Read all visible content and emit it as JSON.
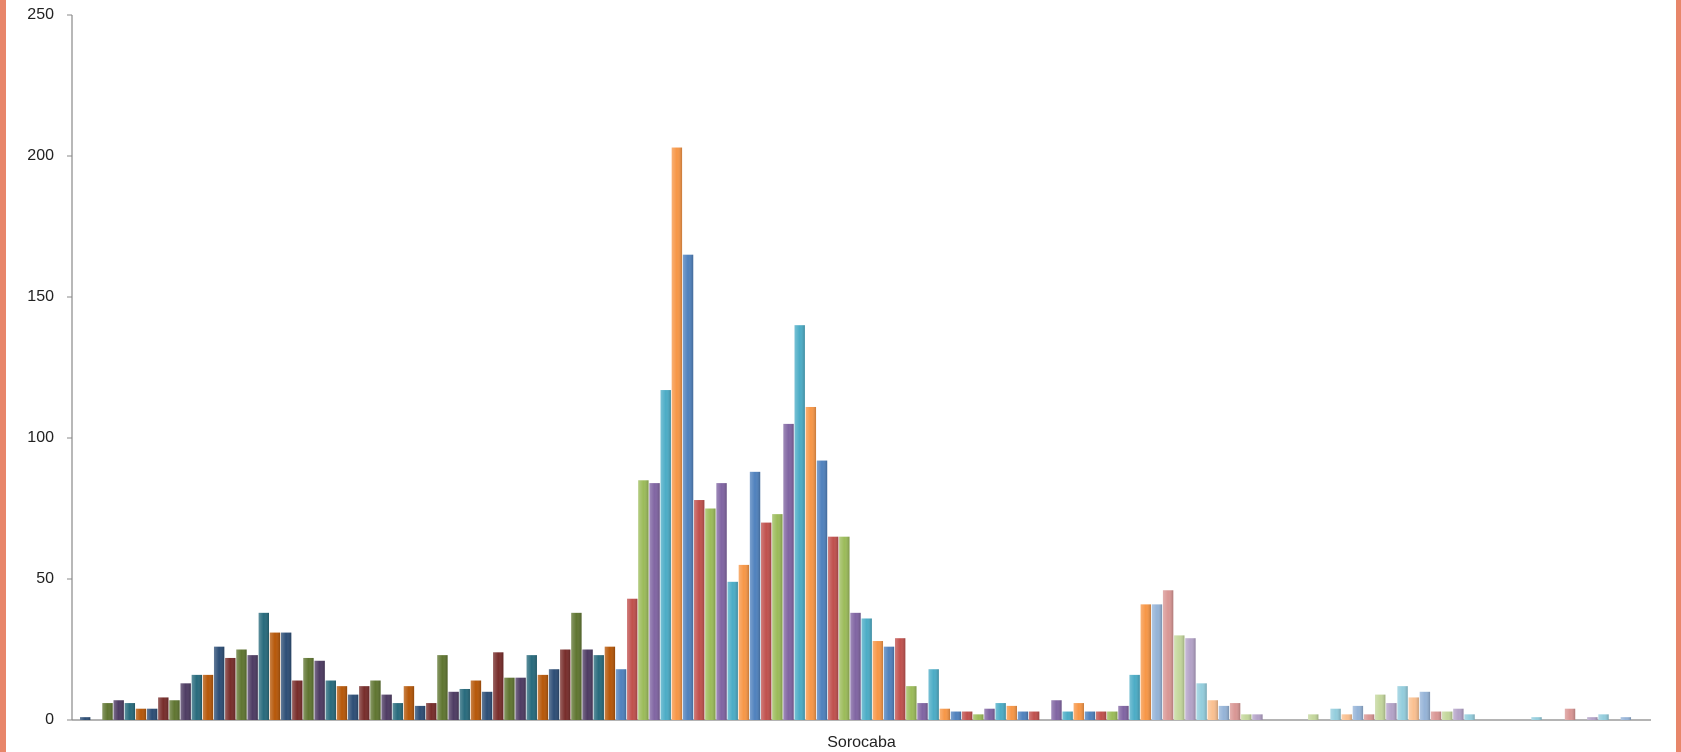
{
  "chart_data": {
    "type": "bar",
    "categories": [
      "Sorocaba"
    ],
    "ylim": [
      0,
      250
    ],
    "yticks": [
      0,
      50,
      100,
      150,
      200,
      250
    ],
    "grid": false,
    "series": [
      {
        "color": "#2C4D75",
        "values": [
          1
        ]
      },
      {
        "color": "#772C2A",
        "values": [
          0
        ]
      },
      {
        "color": "#5F7530",
        "values": [
          6
        ]
      },
      {
        "color": "#4D3B62",
        "values": [
          7
        ]
      },
      {
        "color": "#276A7C",
        "values": [
          6
        ]
      },
      {
        "color": "#B65708",
        "values": [
          4
        ]
      },
      {
        "color": "#2C4D75",
        "values": [
          4
        ]
      },
      {
        "color": "#772C2A",
        "values": [
          8
        ]
      },
      {
        "color": "#5F7530",
        "values": [
          7
        ]
      },
      {
        "color": "#4D3B62",
        "values": [
          13
        ]
      },
      {
        "color": "#276A7C",
        "values": [
          16
        ]
      },
      {
        "color": "#B65708",
        "values": [
          16
        ]
      },
      {
        "color": "#2C4D75",
        "values": [
          26
        ]
      },
      {
        "color": "#772C2A",
        "values": [
          22
        ]
      },
      {
        "color": "#5F7530",
        "values": [
          25
        ]
      },
      {
        "color": "#4D3B62",
        "values": [
          23
        ]
      },
      {
        "color": "#276A7C",
        "values": [
          38
        ]
      },
      {
        "color": "#B65708",
        "values": [
          31
        ]
      },
      {
        "color": "#2C4D75",
        "values": [
          31
        ]
      },
      {
        "color": "#772C2A",
        "values": [
          14
        ]
      },
      {
        "color": "#5F7530",
        "values": [
          22
        ]
      },
      {
        "color": "#4D3B62",
        "values": [
          21
        ]
      },
      {
        "color": "#276A7C",
        "values": [
          14
        ]
      },
      {
        "color": "#B65708",
        "values": [
          12
        ]
      },
      {
        "color": "#2C4D75",
        "values": [
          9
        ]
      },
      {
        "color": "#772C2A",
        "values": [
          12
        ]
      },
      {
        "color": "#5F7530",
        "values": [
          14
        ]
      },
      {
        "color": "#4D3B62",
        "values": [
          9
        ]
      },
      {
        "color": "#276A7C",
        "values": [
          6
        ]
      },
      {
        "color": "#B65708",
        "values": [
          12
        ]
      },
      {
        "color": "#2C4D75",
        "values": [
          5
        ]
      },
      {
        "color": "#772C2A",
        "values": [
          6
        ]
      },
      {
        "color": "#5F7530",
        "values": [
          23
        ]
      },
      {
        "color": "#4D3B62",
        "values": [
          10
        ]
      },
      {
        "color": "#276A7C",
        "values": [
          11
        ]
      },
      {
        "color": "#B65708",
        "values": [
          14
        ]
      },
      {
        "color": "#2C4D75",
        "values": [
          10
        ]
      },
      {
        "color": "#772C2A",
        "values": [
          24
        ]
      },
      {
        "color": "#5F7530",
        "values": [
          15
        ]
      },
      {
        "color": "#4D3B62",
        "values": [
          15
        ]
      },
      {
        "color": "#276A7C",
        "values": [
          23
        ]
      },
      {
        "color": "#B65708",
        "values": [
          16
        ]
      },
      {
        "color": "#2C4D75",
        "values": [
          18
        ]
      },
      {
        "color": "#772C2A",
        "values": [
          25
        ]
      },
      {
        "color": "#5F7530",
        "values": [
          38
        ]
      },
      {
        "color": "#4D3B62",
        "values": [
          25
        ]
      },
      {
        "color": "#276A7C",
        "values": [
          23
        ]
      },
      {
        "color": "#B65708",
        "values": [
          26
        ]
      },
      {
        "color": "#4F81BD",
        "values": [
          18
        ]
      },
      {
        "color": "#C0504D",
        "values": [
          43
        ]
      },
      {
        "color": "#9BBB59",
        "values": [
          85
        ]
      },
      {
        "color": "#8064A2",
        "values": [
          84
        ]
      },
      {
        "color": "#4BACC6",
        "values": [
          117
        ]
      },
      {
        "color": "#F79646",
        "values": [
          203
        ]
      },
      {
        "color": "#4F81BD",
        "values": [
          165
        ]
      },
      {
        "color": "#C0504D",
        "values": [
          78
        ]
      },
      {
        "color": "#9BBB59",
        "values": [
          75
        ]
      },
      {
        "color": "#8064A2",
        "values": [
          84
        ]
      },
      {
        "color": "#4BACC6",
        "values": [
          49
        ]
      },
      {
        "color": "#F79646",
        "values": [
          55
        ]
      },
      {
        "color": "#4F81BD",
        "values": [
          88
        ]
      },
      {
        "color": "#C0504D",
        "values": [
          70
        ]
      },
      {
        "color": "#9BBB59",
        "values": [
          73
        ]
      },
      {
        "color": "#8064A2",
        "values": [
          105
        ]
      },
      {
        "color": "#4BACC6",
        "values": [
          140
        ]
      },
      {
        "color": "#F79646",
        "values": [
          111
        ]
      },
      {
        "color": "#4F81BD",
        "values": [
          92
        ]
      },
      {
        "color": "#C0504D",
        "values": [
          65
        ]
      },
      {
        "color": "#9BBB59",
        "values": [
          65
        ]
      },
      {
        "color": "#8064A2",
        "values": [
          38
        ]
      },
      {
        "color": "#4BACC6",
        "values": [
          36
        ]
      },
      {
        "color": "#F79646",
        "values": [
          28
        ]
      },
      {
        "color": "#4F81BD",
        "values": [
          26
        ]
      },
      {
        "color": "#C0504D",
        "values": [
          29
        ]
      },
      {
        "color": "#9BBB59",
        "values": [
          12
        ]
      },
      {
        "color": "#8064A2",
        "values": [
          6
        ]
      },
      {
        "color": "#4BACC6",
        "values": [
          18
        ]
      },
      {
        "color": "#F79646",
        "values": [
          4
        ]
      },
      {
        "color": "#4F81BD",
        "values": [
          3
        ]
      },
      {
        "color": "#C0504D",
        "values": [
          3
        ]
      },
      {
        "color": "#9BBB59",
        "values": [
          2
        ]
      },
      {
        "color": "#8064A2",
        "values": [
          4
        ]
      },
      {
        "color": "#4BACC6",
        "values": [
          6
        ]
      },
      {
        "color": "#F79646",
        "values": [
          5
        ]
      },
      {
        "color": "#4F81BD",
        "values": [
          3
        ]
      },
      {
        "color": "#C0504D",
        "values": [
          3
        ]
      },
      {
        "color": "#9BBB59",
        "values": [
          0
        ]
      },
      {
        "color": "#8064A2",
        "values": [
          7
        ]
      },
      {
        "color": "#4BACC6",
        "values": [
          3
        ]
      },
      {
        "color": "#F79646",
        "values": [
          6
        ]
      },
      {
        "color": "#4F81BD",
        "values": [
          3
        ]
      },
      {
        "color": "#C0504D",
        "values": [
          3
        ]
      },
      {
        "color": "#9BBB59",
        "values": [
          3
        ]
      },
      {
        "color": "#8064A2",
        "values": [
          5
        ]
      },
      {
        "color": "#4BACC6",
        "values": [
          16
        ]
      },
      {
        "color": "#F79646",
        "values": [
          41
        ]
      },
      {
        "color": "#95B3D7",
        "values": [
          41
        ]
      },
      {
        "color": "#D99694",
        "values": [
          46
        ]
      },
      {
        "color": "#C3D69B",
        "values": [
          30
        ]
      },
      {
        "color": "#B3A2C7",
        "values": [
          29
        ]
      },
      {
        "color": "#93CDDD",
        "values": [
          13
        ]
      },
      {
        "color": "#FAC090",
        "values": [
          7
        ]
      },
      {
        "color": "#95B3D7",
        "values": [
          5
        ]
      },
      {
        "color": "#D99694",
        "values": [
          6
        ]
      },
      {
        "color": "#C3D69B",
        "values": [
          2
        ]
      },
      {
        "color": "#B3A2C7",
        "values": [
          2
        ]
      },
      {
        "color": "#93CDDD",
        "values": [
          0
        ]
      },
      {
        "color": "#FAC090",
        "values": [
          0
        ]
      },
      {
        "color": "#95B3D7",
        "values": [
          0
        ]
      },
      {
        "color": "#D99694",
        "values": [
          0
        ]
      },
      {
        "color": "#C3D69B",
        "values": [
          2
        ]
      },
      {
        "color": "#B3A2C7",
        "values": [
          0
        ]
      },
      {
        "color": "#93CDDD",
        "values": [
          4
        ]
      },
      {
        "color": "#FAC090",
        "values": [
          2
        ]
      },
      {
        "color": "#95B3D7",
        "values": [
          5
        ]
      },
      {
        "color": "#D99694",
        "values": [
          2
        ]
      },
      {
        "color": "#C3D69B",
        "values": [
          9
        ]
      },
      {
        "color": "#B3A2C7",
        "values": [
          6
        ]
      },
      {
        "color": "#93CDDD",
        "values": [
          12
        ]
      },
      {
        "color": "#FAC090",
        "values": [
          8
        ]
      },
      {
        "color": "#95B3D7",
        "values": [
          10
        ]
      },
      {
        "color": "#D99694",
        "values": [
          3
        ]
      },
      {
        "color": "#C3D69B",
        "values": [
          3
        ]
      },
      {
        "color": "#B3A2C7",
        "values": [
          4
        ]
      },
      {
        "color": "#93CDDD",
        "values": [
          2
        ]
      },
      {
        "color": "#FAC090",
        "values": [
          0
        ]
      },
      {
        "color": "#95B3D7",
        "values": [
          0
        ]
      },
      {
        "color": "#D99694",
        "values": [
          0
        ]
      },
      {
        "color": "#C3D69B",
        "values": [
          0
        ]
      },
      {
        "color": "#B3A2C7",
        "values": [
          0
        ]
      },
      {
        "color": "#93CDDD",
        "values": [
          1
        ]
      },
      {
        "color": "#FAC090",
        "values": [
          0
        ]
      },
      {
        "color": "#95B3D7",
        "values": [
          0
        ]
      },
      {
        "color": "#D99694",
        "values": [
          4
        ]
      },
      {
        "color": "#C3D69B",
        "values": [
          0
        ]
      },
      {
        "color": "#B3A2C7",
        "values": [
          1
        ]
      },
      {
        "color": "#93CDDD",
        "values": [
          2
        ]
      },
      {
        "color": "#FAC090",
        "values": [
          0
        ]
      },
      {
        "color": "#95B3D7",
        "values": [
          1
        ]
      },
      {
        "color": "#D99694",
        "values": [
          0
        ]
      }
    ]
  }
}
